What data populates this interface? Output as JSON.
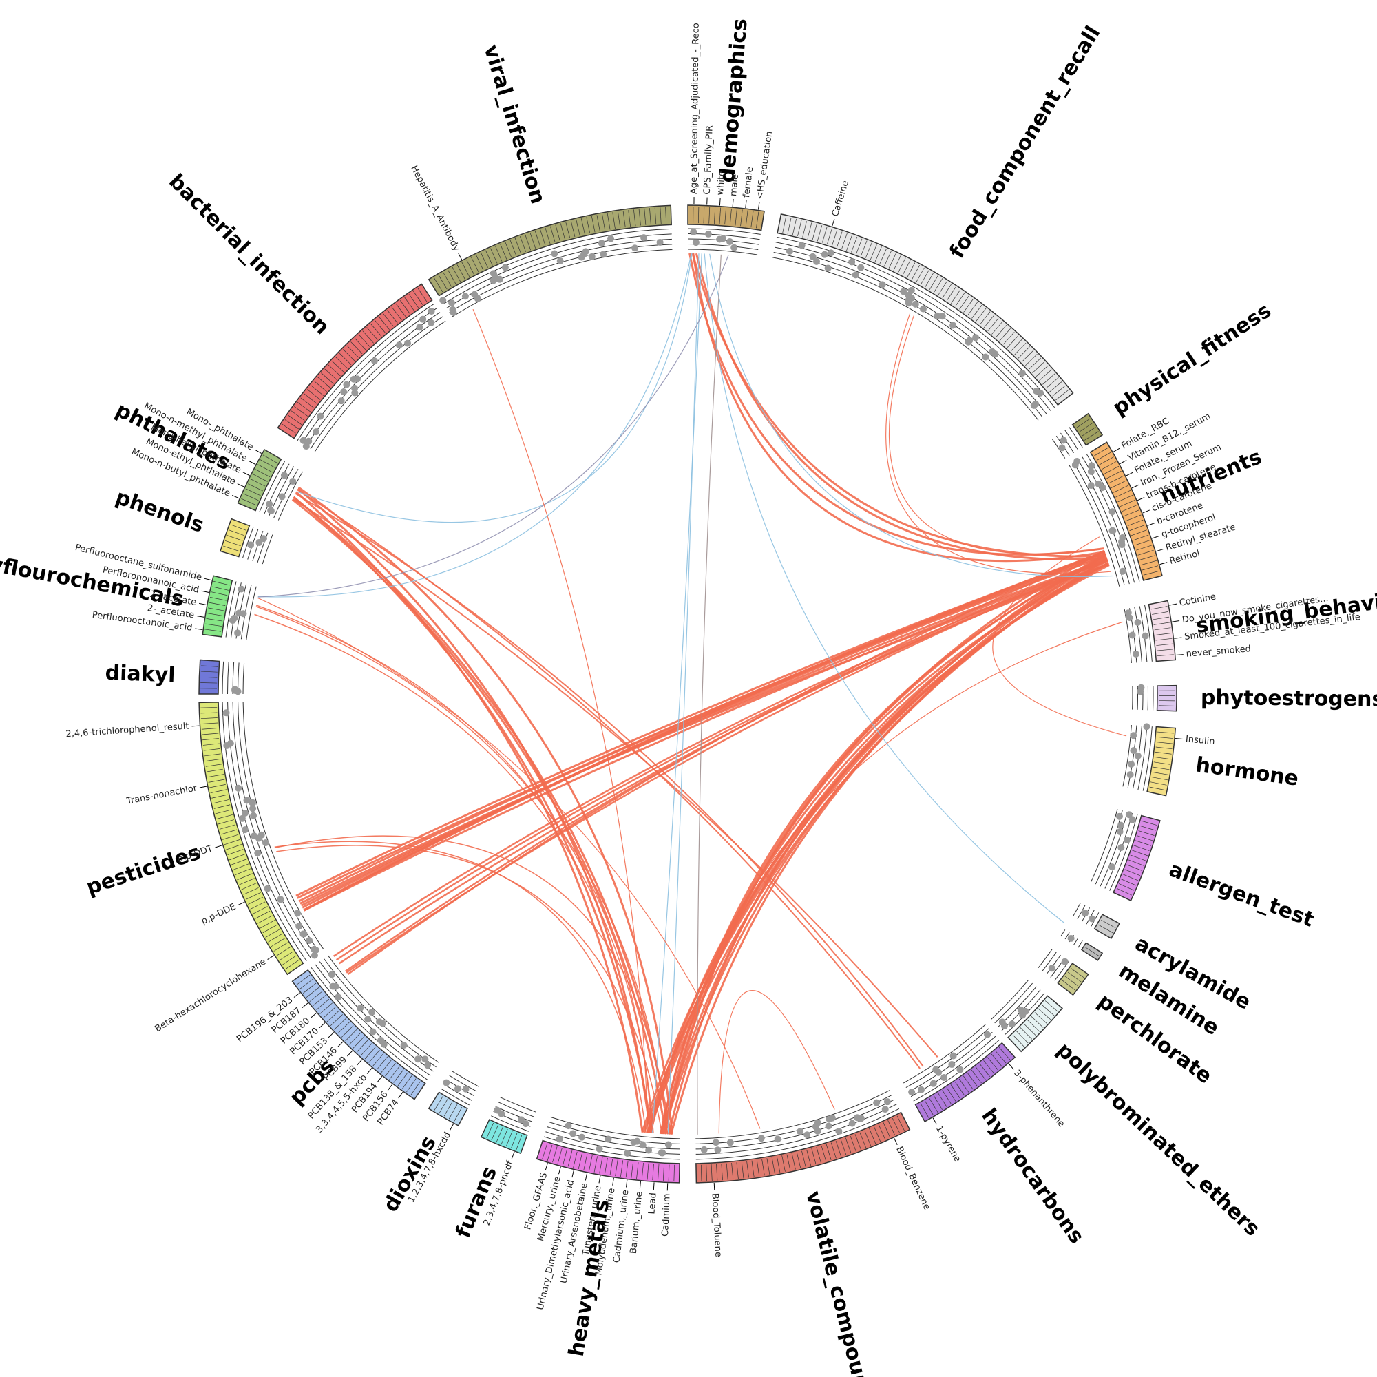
{
  "groups": [
    {
      "name": "demographics",
      "color": "#c8a86b",
      "features": [
        {
          "label": "Age_at_Screening_Adjudicated_-_Reco"
        },
        {
          "label": "CPS_Family_PIR"
        },
        {
          "label": "white"
        },
        {
          "label": "male"
        },
        {
          "label": "female"
        },
        {
          "label": "<HS_education"
        }
      ]
    },
    {
      "name": "food_component_recall",
      "color": "#e6e6e6",
      "features": [
        {
          "label": "Caffeine"
        }
      ]
    },
    {
      "name": "physical_fitness",
      "color": "#a0a060",
      "features": []
    },
    {
      "name": "nutrients",
      "color": "#f4b36b",
      "features": [
        {
          "label": "Folate,_RBC"
        },
        {
          "label": "Vitamin_B12,_serum"
        },
        {
          "label": "Folate,_serum",
          "color": "#f26b4f"
        },
        {
          "label": "Iron,_Frozen_Serum",
          "color": "#f26b4f"
        },
        {
          "label": "trans-b-carotene"
        },
        {
          "label": "cis-b-carotene",
          "color": "#f26b4f"
        },
        {
          "label": "b-carotene"
        },
        {
          "label": "g-tocopherol",
          "color": "#6aaed6"
        },
        {
          "label": "Retinyl_stearate"
        },
        {
          "label": "Retinol",
          "color": "#f26b4f"
        }
      ]
    },
    {
      "name": "smoking_behavior",
      "color": "#f4dde8",
      "features": [
        {
          "label": "Cotinine"
        },
        {
          "label": "Do_you_now_smoke_cigarettes..."
        },
        {
          "label": "Smoked_at_least_100_cigarettes_in_life"
        },
        {
          "label": "never_smoked"
        }
      ]
    },
    {
      "name": "phytoestrogens",
      "color": "#dcc8ee",
      "features": []
    },
    {
      "name": "hormone",
      "color": "#f3df86",
      "features": [
        {
          "label": "Insulin"
        }
      ]
    },
    {
      "name": "allergen_test",
      "color": "#d88be6",
      "features": []
    },
    {
      "name": "acrylamide",
      "color": "#cccccc",
      "features": []
    },
    {
      "name": "melamine",
      "color": "#bbbbbb",
      "features": []
    },
    {
      "name": "perchlorate",
      "color": "#c8c88a",
      "features": []
    },
    {
      "name": "polybrominated_ethers",
      "color": "#e6f2f2",
      "features": []
    },
    {
      "name": "hydrocarbons",
      "color": "#b07adc",
      "features": [
        {
          "label": "3-phenanthrene"
        },
        {
          "label": "1-pyrene"
        }
      ]
    },
    {
      "name": "volatile_compounds",
      "color": "#de7a6e",
      "features": [
        {
          "label": "Blood_Benzene"
        },
        {
          "label": "Blood_Toluene"
        }
      ]
    },
    {
      "name": "heavy_metals",
      "color": "#e67ae0",
      "features": [
        {
          "label": "Cadmium"
        },
        {
          "label": "Lead",
          "color": "#f26b4f"
        },
        {
          "label": "Barium,_urine"
        },
        {
          "label": "Cadmium,_urine"
        },
        {
          "label": "Molybdenum,_urine"
        },
        {
          "label": "Tungsten,_urine"
        },
        {
          "label": "Urinary_Arsenobetaine"
        },
        {
          "label": "Urinary_Dimethylarsonic_acid"
        },
        {
          "label": "Mercury,_urine"
        },
        {
          "label": "Floor,_GFAAS"
        }
      ]
    },
    {
      "name": "furans",
      "color": "#7de6e0",
      "features": [
        {
          "label": "2,3,4,7,8-pncdf"
        }
      ]
    },
    {
      "name": "dioxins",
      "color": "#b8d8f0",
      "features": [
        {
          "label": "1,2,3,4,7,8-hxcdd"
        }
      ]
    },
    {
      "name": "pcbs",
      "color": "#aac4ee",
      "features": [
        {
          "label": "PCB74"
        },
        {
          "label": "PCB156"
        },
        {
          "label": "PCB194"
        },
        {
          "label": "3,3,4,4,5,5-hxcb"
        },
        {
          "label": "PCB138_&_158"
        },
        {
          "label": "PCB99"
        },
        {
          "label": "PCB146"
        },
        {
          "label": "PCB153"
        },
        {
          "label": "PCB170"
        },
        {
          "label": "PCB180"
        },
        {
          "label": "PCB187"
        },
        {
          "label": "PCB196_&_203"
        }
      ]
    },
    {
      "name": "pesticides",
      "color": "#dde878",
      "features": [
        {
          "label": "Beta-hexachlorocyclohexane"
        },
        {
          "label": "p,p-DDE"
        },
        {
          "label": "p,p-DDT"
        },
        {
          "label": "Trans-nonachlor"
        },
        {
          "label": "2,4,6-trichlorophenol_result"
        }
      ]
    },
    {
      "name": "diakyl",
      "color": "#7078d8",
      "features": []
    },
    {
      "name": "polyflourochemicals",
      "color": "#86e686",
      "features": [
        {
          "label": "Perfluorooctanoic_acid"
        },
        {
          "label": "2-_acetate"
        },
        {
          "label": "2-_acetate"
        },
        {
          "label": "Perflorononanoic_acid"
        },
        {
          "label": "Perfluorooctane_sulfonamide"
        }
      ]
    },
    {
      "name": "phenols",
      "color": "#eee078",
      "features": []
    },
    {
      "name": "phthalates",
      "color": "#9ec07a",
      "features": [
        {
          "label": "Mono-n-butyl_phthalate"
        },
        {
          "label": "Mono-ethyl_phthalate"
        },
        {
          "label": "Mono-hexyl_phthalate",
          "color": "#6aaed6"
        },
        {
          "label": "Mono-n-methyl_phthalate"
        },
        {
          "label": "Mono-_phthalate",
          "color": "#6aaed6"
        }
      ]
    },
    {
      "name": "bacterial_infection",
      "color": "#e87070",
      "features": []
    },
    {
      "name": "viral_infection",
      "color": "#a8a870",
      "features": [
        {
          "label": "Hepatitis_A_Antibody"
        }
      ]
    }
  ]
}
